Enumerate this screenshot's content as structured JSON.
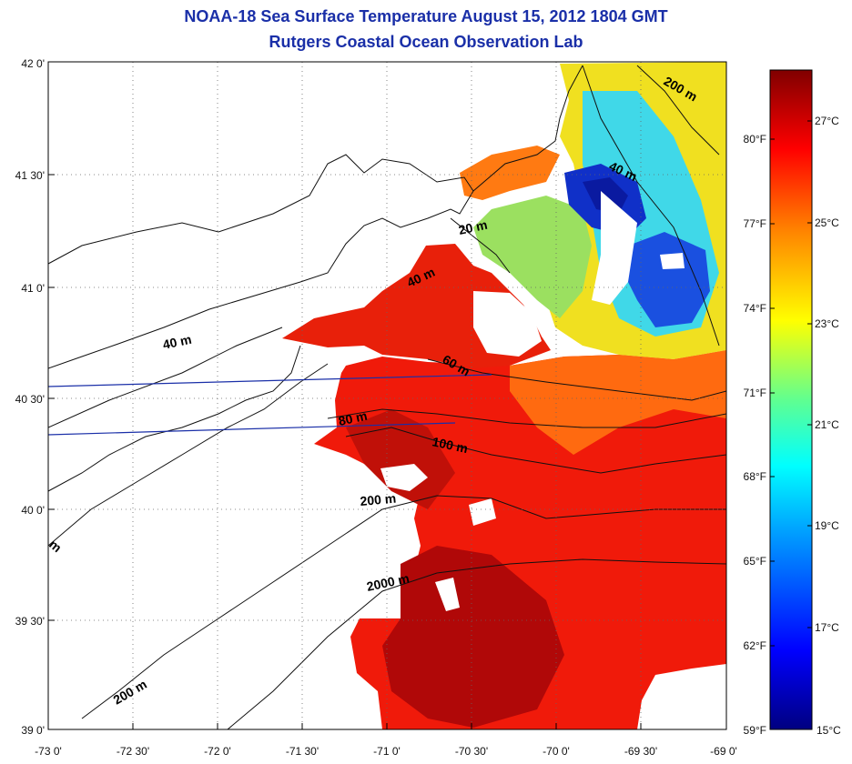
{
  "header": {
    "title": "NOAA-18 Sea Surface Temperature August 15, 2012 1804 GMT",
    "subtitle": "Rutgers Coastal Ocean Observation Lab"
  },
  "map": {
    "lat_ticks": [
      "42 0'",
      "41 30'",
      "41 0'",
      "40 30'",
      "40 0'",
      "39 30'",
      "39 0'"
    ],
    "lon_ticks": [
      "-73 0'",
      "-72 30'",
      "-72 0'",
      "-71 30'",
      "-71 0'",
      "-70 30'",
      "-70 0'",
      "-69 30'",
      "-69 0'"
    ],
    "contour_labels": [
      "200 m",
      "40 m",
      "20 m",
      "40 m",
      "40 m",
      "60 m",
      "80 m",
      "100 m",
      "200 m",
      "2000 m",
      "200 m",
      "m"
    ]
  },
  "colorbar": {
    "celsius_ticks": [
      "27°C",
      "25°C",
      "23°C",
      "21°C",
      "19°C",
      "17°C",
      "15°C"
    ],
    "fahrenheit_ticks": [
      "80°F",
      "77°F",
      "74°F",
      "71°F",
      "68°F",
      "65°F",
      "62°F",
      "59°F"
    ],
    "range_c": [
      15,
      28.5
    ],
    "colors": [
      "#000080",
      "#0000ff",
      "#00a0ff",
      "#00ffff",
      "#60ff90",
      "#ffff00",
      "#ff8000",
      "#ff0000",
      "#800000"
    ]
  }
}
